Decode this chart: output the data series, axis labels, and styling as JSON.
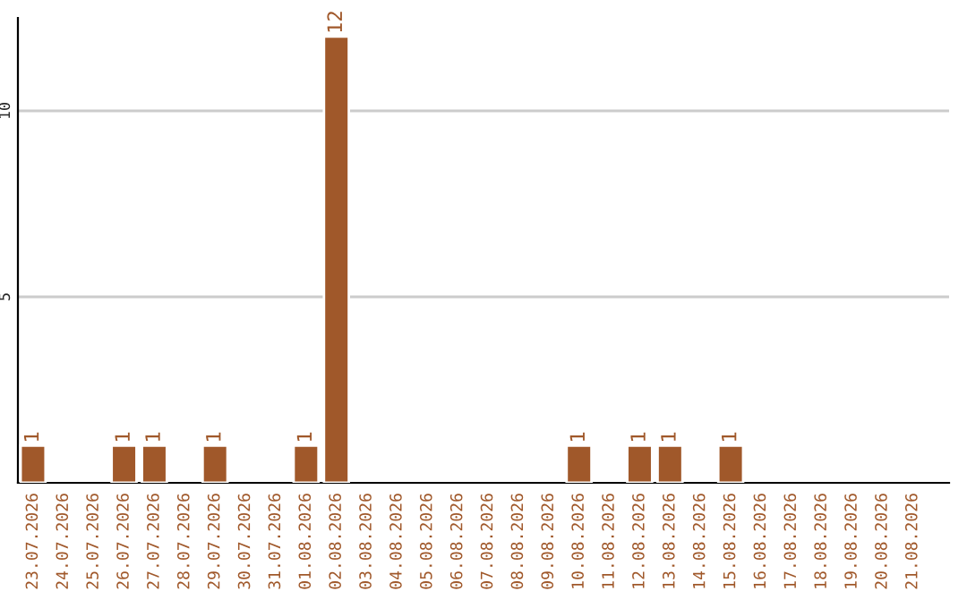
{
  "chart_data": {
    "type": "bar",
    "categories": [
      "23.07.2026",
      "24.07.2026",
      "25.07.2026",
      "26.07.2026",
      "27.07.2026",
      "28.07.2026",
      "29.07.2026",
      "30.07.2026",
      "31.07.2026",
      "01.08.2026",
      "02.08.2026",
      "03.08.2026",
      "04.08.2026",
      "05.08.2026",
      "06.08.2026",
      "07.08.2026",
      "08.08.2026",
      "09.08.2026",
      "10.08.2026",
      "11.08.2026",
      "12.08.2026",
      "13.08.2026",
      "14.08.2026",
      "15.08.2026",
      "16.08.2026",
      "17.08.2026",
      "18.08.2026",
      "19.08.2026",
      "20.08.2026",
      "21.08.2026"
    ],
    "values": [
      1,
      null,
      null,
      1,
      1,
      null,
      1,
      null,
      null,
      1,
      12,
      null,
      null,
      null,
      null,
      null,
      null,
      null,
      1,
      null,
      1,
      1,
      null,
      1,
      null,
      null,
      null,
      null,
      null,
      null
    ],
    "value_labels": [
      "1",
      null,
      null,
      "1",
      "1",
      null,
      "1",
      null,
      null,
      "1",
      "12",
      null,
      null,
      null,
      null,
      null,
      null,
      null,
      "1",
      null,
      "1",
      "1",
      null,
      "1",
      null,
      null,
      null,
      null,
      null,
      null
    ],
    "color": "#a0582a",
    "ylim": [
      0,
      12.5
    ],
    "yticks": [
      5,
      10
    ],
    "grid": "y"
  }
}
